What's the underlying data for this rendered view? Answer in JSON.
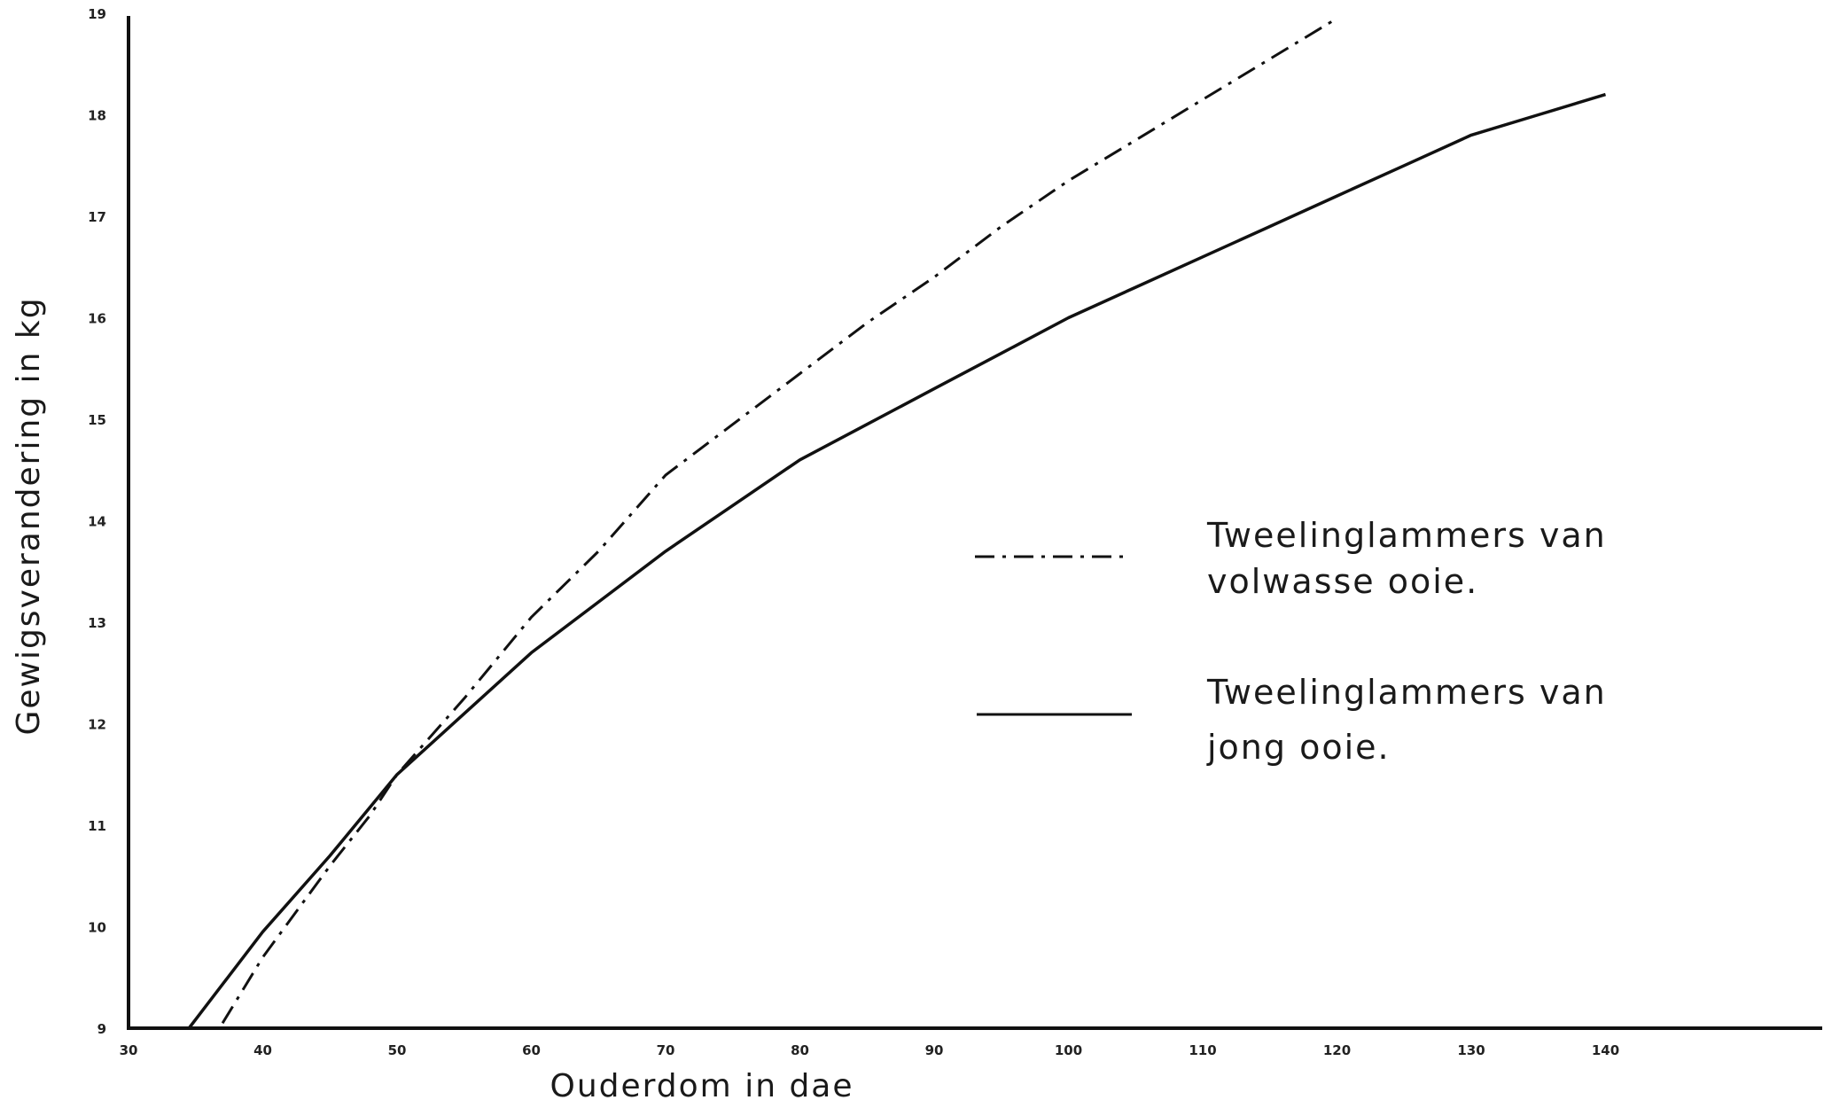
{
  "chart_data": {
    "type": "line",
    "title": "",
    "xlabel": "Ouderdom in dae",
    "ylabel": "Gewigsverandering in kg",
    "xlim": [
      30,
      156
    ],
    "ylim": [
      9,
      19
    ],
    "xticks": [
      "30",
      "40",
      "50",
      "60",
      "70",
      "80",
      "90",
      "100",
      "110",
      "120",
      "130",
      "140"
    ],
    "yticks": [
      "9",
      "10",
      "11",
      "12",
      "13",
      "14",
      "15",
      "16",
      "17",
      "18",
      "19"
    ],
    "grid": false,
    "legend_position": "right",
    "series": [
      {
        "name": "Tweelinglammers van volwasse ooie.",
        "style": "dash-dot",
        "x": [
          37,
          40,
          45,
          48,
          50,
          55,
          60,
          65,
          70,
          75,
          80,
          85,
          90,
          95,
          100,
          105,
          110,
          115,
          120
        ],
        "y": [
          9.05,
          9.7,
          10.6,
          11.1,
          11.5,
          12.25,
          13.05,
          13.7,
          14.45,
          14.95,
          15.45,
          15.95,
          16.4,
          16.9,
          17.35,
          17.75,
          18.15,
          18.55,
          18.95
        ]
      },
      {
        "name": "Tweelinglammers van jong ooie.",
        "style": "solid",
        "x": [
          34.5,
          40,
          45,
          50,
          55,
          60,
          65,
          70,
          75,
          80,
          85,
          90,
          95,
          100,
          105,
          110,
          115,
          120,
          125,
          130,
          135,
          140
        ],
        "y": [
          9.0,
          9.95,
          10.7,
          11.5,
          12.1,
          12.7,
          13.2,
          13.7,
          14.15,
          14.6,
          14.95,
          15.3,
          15.65,
          16.0,
          16.3,
          16.6,
          16.9,
          17.2,
          17.5,
          17.8,
          18.0,
          18.2
        ]
      }
    ]
  }
}
